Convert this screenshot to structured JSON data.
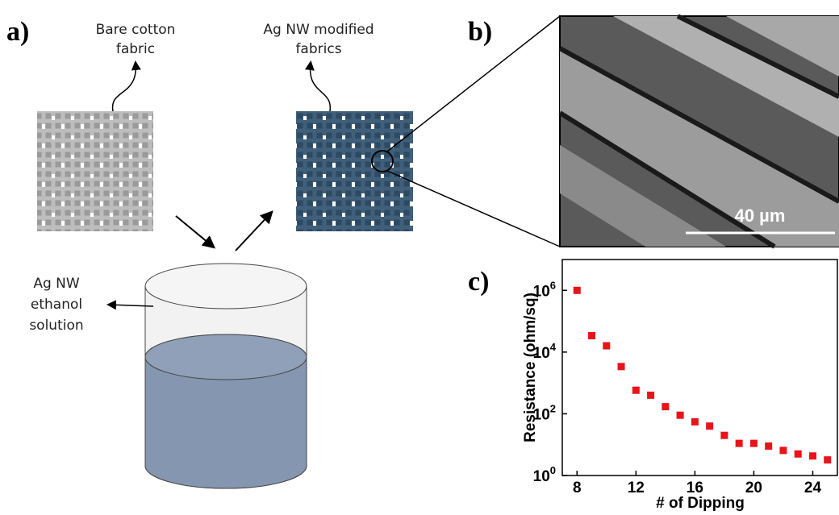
{
  "panel_a": {
    "label": "a)",
    "bare_fabric_label": [
      "Bare cotton",
      "fabric"
    ],
    "modified_fabric_label": [
      "Ag NW modified",
      "fabrics"
    ],
    "solution_label": [
      "Ag NW",
      "ethanol",
      "solution"
    ]
  },
  "panel_b": {
    "label": "b)",
    "scale_bar": "40 µm"
  },
  "panel_c": {
    "label": "c)"
  },
  "chart_data": {
    "type": "scatter",
    "x_label": "# of Dipping",
    "y_label": "Resistance (ohm/sq)",
    "x": [
      8,
      9,
      10,
      11,
      12,
      13,
      14,
      15,
      16,
      17,
      18,
      19,
      20,
      21,
      22,
      23,
      24,
      25
    ],
    "values": [
      1000000,
      34000,
      16000,
      3400,
      580,
      400,
      170,
      90,
      55,
      40,
      20,
      11,
      11,
      9,
      6.5,
      5,
      4.3,
      3.2
    ],
    "color": "#e8141a",
    "log_y": true,
    "xlim": [
      7,
      26
    ],
    "ylim": [
      1,
      10000000
    ],
    "xticks": [
      8,
      12,
      16,
      20,
      24
    ],
    "yticks": [
      {
        "value": 1,
        "label": "10^0"
      },
      {
        "value": 100,
        "label": "10^2"
      },
      {
        "value": 10000,
        "label": "10^4"
      },
      {
        "value": 1000000,
        "label": "10^6"
      }
    ]
  }
}
